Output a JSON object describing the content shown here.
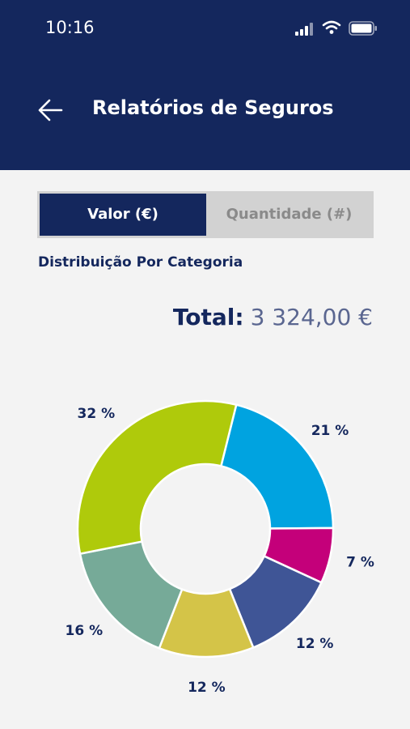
{
  "status_bar": {
    "time": "10:16"
  },
  "header": {
    "title": "Relatórios de Seguros",
    "background_color": "#14275d"
  },
  "toggle": {
    "active_label": "Valor (€)",
    "inactive_label": "Quantidade (#)"
  },
  "section": {
    "title": "Distribuição Por Categoria"
  },
  "total": {
    "label": "Total:",
    "value": "3 324,00 €"
  },
  "chart_data": {
    "type": "pie",
    "style": "donut",
    "slices": [
      {
        "label": "21 %",
        "value": 21,
        "color": "#00a3e0"
      },
      {
        "label": "7 %",
        "value": 7,
        "color": "#c4007a"
      },
      {
        "label": "12 %",
        "value": 12,
        "color": "#3f5596"
      },
      {
        "label": "12 %",
        "value": 12,
        "color": "#d4c448"
      },
      {
        "label": "16 %",
        "value": 16,
        "color": "#76aa98"
      },
      {
        "label": "32 %",
        "value": 32,
        "color": "#afca0b"
      }
    ]
  }
}
